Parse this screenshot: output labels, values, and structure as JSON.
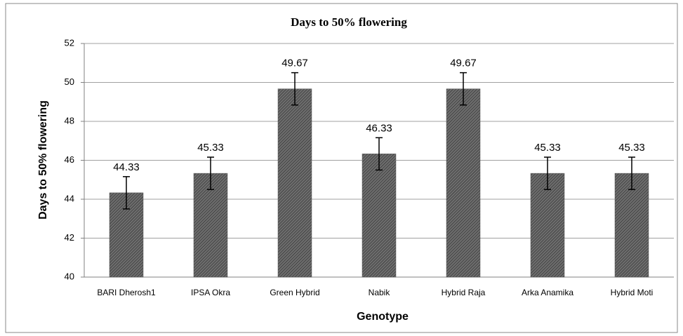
{
  "chart_data": {
    "type": "bar",
    "title": "Days to 50% flowering",
    "x_label": "Genotype",
    "y_label": "Days to 50% flowering",
    "categories": [
      "BARI Dherosh1",
      "IPSA Okra",
      "Green Hybrid",
      "Nabik",
      "Hybrid Raja",
      "Arka  Anamika",
      "Hybrid Moti"
    ],
    "values": [
      44.33,
      45.33,
      49.67,
      46.33,
      49.67,
      45.33,
      45.33
    ],
    "errors": [
      0.83,
      0.83,
      0.83,
      0.83,
      0.83,
      0.83,
      0.83
    ],
    "color": "#6e6e6e",
    "ylim": [
      40,
      52
    ],
    "yticks": [
      40,
      42,
      44,
      46,
      48,
      50,
      52
    ],
    "grid": true
  }
}
